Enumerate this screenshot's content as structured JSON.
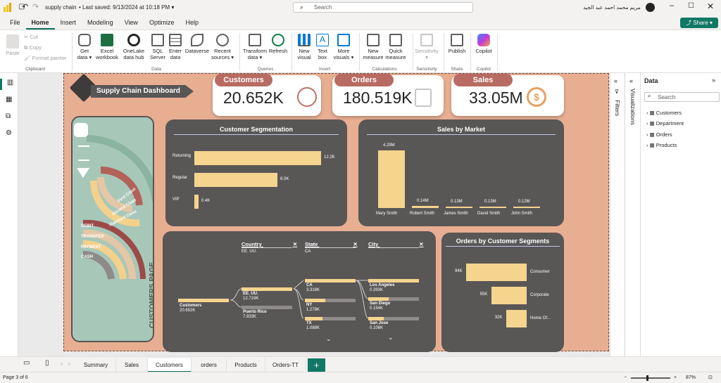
{
  "titlebar": {
    "filename": "supply chain",
    "saved": "Last saved: 9/13/2024 at 10:18 PM",
    "search_placeholder": "Search",
    "user": "مريم محمد احمد عبد الجيد"
  },
  "menu": [
    "File",
    "Home",
    "Insert",
    "Modeling",
    "View",
    "Optimize",
    "Help"
  ],
  "share": "Share",
  "ribbon": {
    "paste": "Paste",
    "cut": "Cut",
    "copy": "Copy",
    "format_painter": "Format painter",
    "clipboard": "Clipboard",
    "get_data": "Get data",
    "excel": "Excel workbook",
    "onelake": "OneLake data hub",
    "sql": "SQL Server",
    "enter": "Enter data",
    "dataverse": "Dataverse",
    "recent": "Recent sources",
    "data": "Data",
    "transform": "Transform data",
    "refresh": "Refresh",
    "queries": "Queries",
    "new_visual": "New visual",
    "text_box": "Text box",
    "more_visuals": "More visuals",
    "insert": "Insert",
    "new_measure": "New measure",
    "quick_measure": "Quick measure",
    "calculations": "Calculations",
    "sensitivity": "Sensitivity",
    "sensitivity_grp": "Sensitivity",
    "publish": "Publish",
    "share_grp": "Share",
    "copilot": "Copilot",
    "copilot_grp": "Copilot"
  },
  "dashboard": {
    "title": "Supply Chain Dashboard",
    "side_label": "CUSTOMERS PAGE",
    "arc_labels": [
      "First Class",
      "Second Class",
      "Standard Class"
    ],
    "pay_labels": [
      "DEBIT",
      "TRANSFER",
      "PAYMENT",
      "CASH"
    ]
  },
  "kpis": [
    {
      "label": "Customers",
      "value": "20.652K"
    },
    {
      "label": "Orders",
      "value": "180.519K"
    },
    {
      "label": "Sales",
      "value": "33.05M"
    }
  ],
  "segmentation": {
    "title": "Customer Segmentation",
    "categories": [
      "Returning",
      "Regular",
      "VIP"
    ],
    "labels": [
      "12.2K",
      "8.0K",
      "0.4K"
    ]
  },
  "sales_market": {
    "title": "Sales by Market",
    "categories": [
      "Mary Smith",
      "Robert Smith",
      "James Smith",
      "David Smith",
      "John Smith"
    ],
    "labels": [
      "4.29M",
      "0.14M",
      "0.13M",
      "0.13M",
      "0.12M"
    ]
  },
  "decomp": {
    "country_h": "Country",
    "country_v": "EE. UU.",
    "state_h": "State",
    "state_v": "CA",
    "city_h": "City",
    "root": "Customers",
    "root_v": "20.652K",
    "countries": [
      {
        "n": "EE. UU.",
        "v": "12.719K"
      },
      {
        "n": "Puerto Rico",
        "v": "7.933K"
      }
    ],
    "states": [
      {
        "n": "CA",
        "v": "3.318K"
      },
      {
        "n": "NY",
        "v": "1.278K"
      },
      {
        "n": "TX",
        "v": "1.088K"
      }
    ],
    "cities": [
      {
        "n": "Los Angeles",
        "v": "0.393K"
      },
      {
        "n": "San Diego",
        "v": "0.154K"
      },
      {
        "n": "San Jose",
        "v": "0.106K"
      }
    ]
  },
  "orders_seg": {
    "title": "Orders by Customer Segments",
    "categories": [
      "Consumer",
      "Corporate",
      "Home Of..."
    ],
    "labels": [
      "94K",
      "55K",
      "32K"
    ]
  },
  "chart_data": [
    {
      "type": "bar",
      "title": "Customer Segmentation",
      "categories": [
        "Returning",
        "Regular",
        "VIP"
      ],
      "values": [
        12.2,
        8.0,
        0.4
      ],
      "unit": "K"
    },
    {
      "type": "bar",
      "title": "Sales by Market",
      "categories": [
        "Mary Smith",
        "Robert Smith",
        "James Smith",
        "David Smith",
        "John Smith"
      ],
      "values": [
        4.29,
        0.14,
        0.13,
        0.13,
        0.12
      ],
      "unit": "M"
    },
    {
      "type": "bar",
      "title": "Orders by Customer Segments",
      "categories": [
        "Consumer",
        "Corporate",
        "Home Of..."
      ],
      "values": [
        94,
        55,
        32
      ],
      "unit": "K"
    }
  ],
  "right": {
    "filters": "Filters",
    "visualizations": "Visualizations",
    "data_title": "Data",
    "search_placeholder": "Search",
    "fields": [
      "Customers",
      "Department",
      "Orders",
      "Products"
    ]
  },
  "pages": [
    "Summary",
    "Sales",
    "Customers",
    "orders",
    "Products",
    "Orders-TT"
  ],
  "status": {
    "page": "Page 3 of 6",
    "zoom": "87%"
  }
}
